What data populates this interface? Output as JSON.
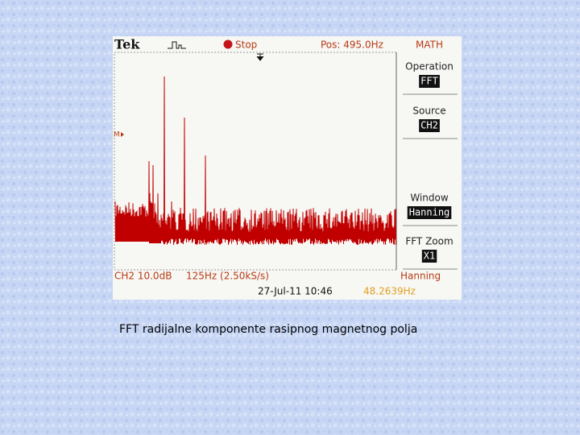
{
  "header": {
    "brand": "Tek",
    "status": "Stop",
    "position": "Pos: 495.0Hz",
    "menu_title": "MATH"
  },
  "marker": "M",
  "menu": [
    {
      "label": "Operation",
      "value": "FFT"
    },
    {
      "label": "Source",
      "value": "CH2"
    },
    {
      "label": "Window",
      "value": "Hanning"
    },
    {
      "label": "FFT Zoom",
      "value": "X1"
    }
  ],
  "footer": {
    "channel": "CH2 10.0dB",
    "span": "125Hz (2.50kS/s)",
    "datetime": "27-Jul-11 10:46",
    "window": "Hanning",
    "frequency": "48.2639Hz"
  },
  "caption": "FFT radijalne komponente rasipnog magnetnog polja"
}
